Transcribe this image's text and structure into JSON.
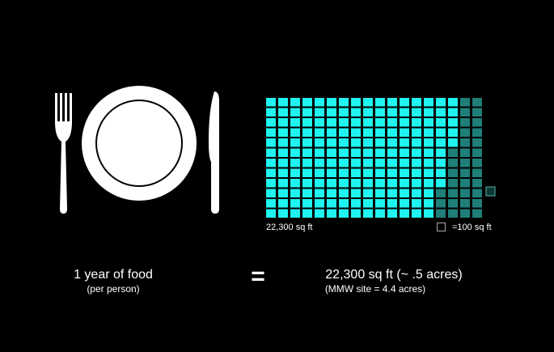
{
  "grid_label": "22,300 sq ft",
  "legend_label": "=100 sq ft",
  "left": {
    "title": "1 year of food",
    "subtitle": "(per person)"
  },
  "equals": "=",
  "right": {
    "title": "22,300 sq ft (~ .5 acres)",
    "subtitle": "(MMW site = 4.4 acres)"
  }
}
